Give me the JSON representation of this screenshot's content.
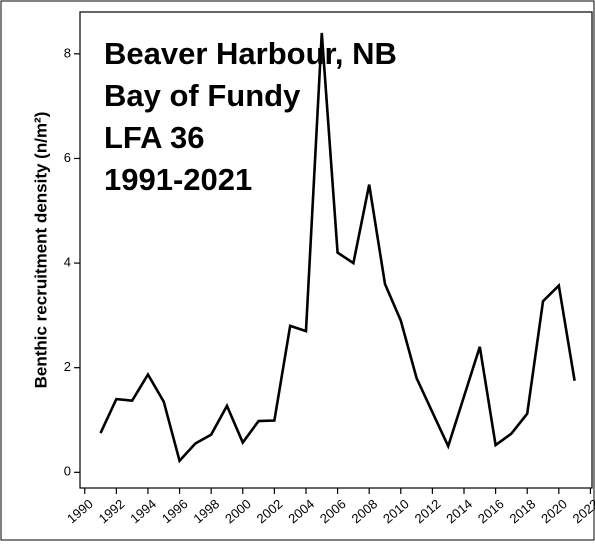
{
  "chart_data": {
    "type": "line",
    "annotation": [
      "Beaver Harbour, NB",
      "Bay of Fundy",
      "LFA 36",
      "1991-2021"
    ],
    "ylabel": "Benthic recruitment density (n/m²)",
    "x": [
      1991,
      1992,
      1993,
      1994,
      1995,
      1996,
      1997,
      1998,
      1999,
      2000,
      2001,
      2002,
      2003,
      2004,
      2005,
      2006,
      2007,
      2008,
      2009,
      2010,
      2011,
      2012,
      2013,
      2014,
      2015,
      2016,
      2017,
      2018,
      2019,
      2020,
      2021
    ],
    "series": [
      {
        "color": "#000000",
        "values": [
          0.75,
          1.4,
          1.37,
          1.87,
          1.35,
          0.22,
          0.55,
          0.72,
          1.27,
          0.57,
          0.98,
          0.99,
          2.8,
          2.7,
          8.4,
          4.2,
          4.0,
          5.5,
          3.6,
          2.9,
          1.8,
          1.15,
          0.5,
          1.45,
          2.4,
          0.52,
          0.74,
          1.12,
          3.27,
          3.57,
          1.75
        ]
      }
    ],
    "xlim": [
      1989.7,
      2022.1
    ],
    "ylim": [
      -0.3,
      8.8
    ],
    "xticks": [
      1990,
      1992,
      1994,
      1996,
      1998,
      2000,
      2002,
      2004,
      2006,
      2008,
      2010,
      2012,
      2014,
      2016,
      2018,
      2020,
      2022
    ],
    "yticks": [
      0,
      2,
      4,
      6,
      8
    ]
  }
}
